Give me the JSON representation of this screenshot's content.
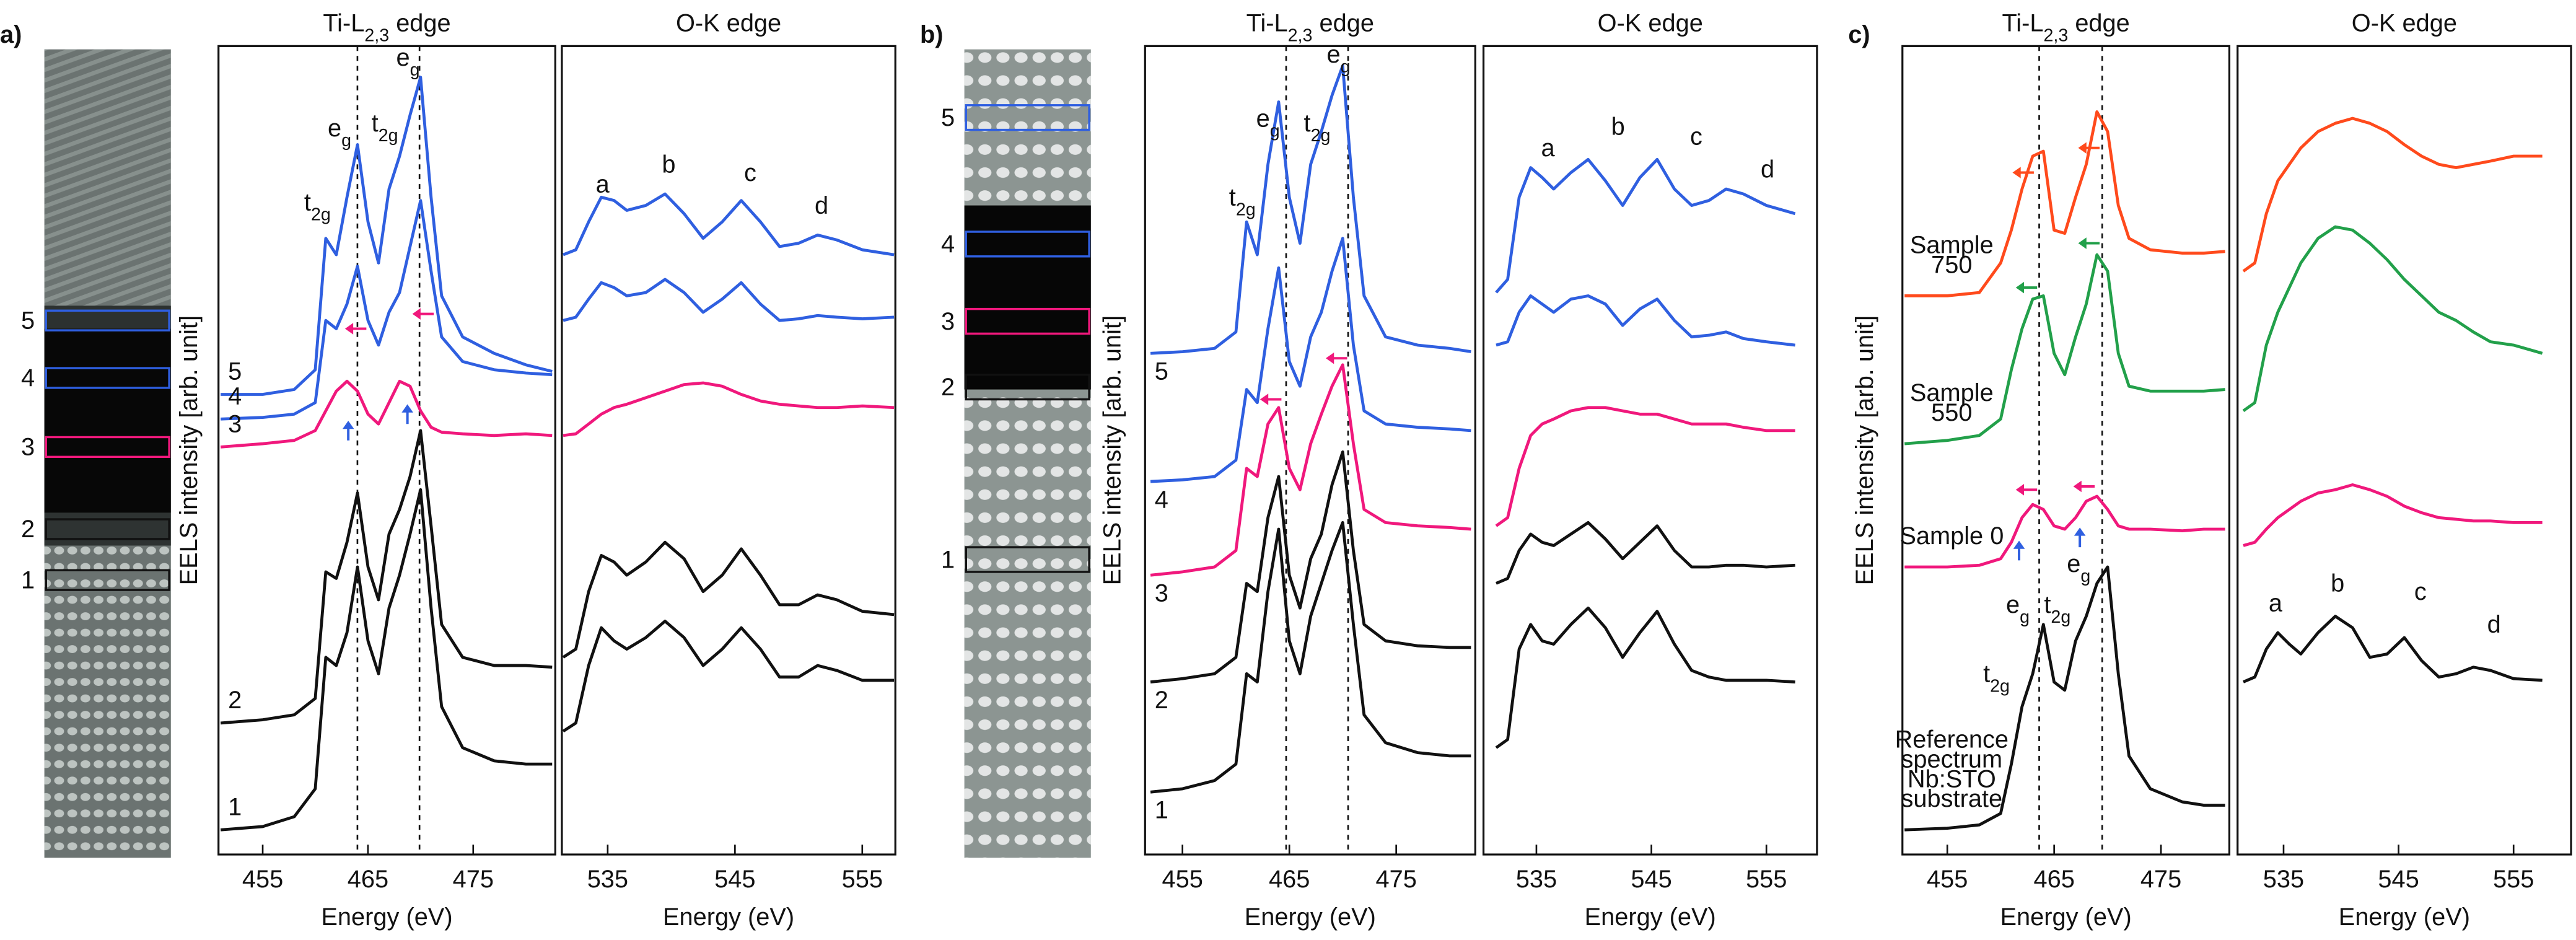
{
  "figure": {
    "panels": [
      {
        "label": "a)",
        "boxes": [
          {
            "label": "5",
            "color": "#2f5fe0"
          },
          {
            "label": "4",
            "color": "#2f5fe0"
          },
          {
            "label": "3",
            "color": "#f0187c"
          },
          {
            "label": "2",
            "color": "#111111"
          },
          {
            "label": "1",
            "color": "#111111"
          }
        ]
      },
      {
        "label": "b)",
        "boxes": [
          {
            "label": "5",
            "color": "#2f5fe0"
          },
          {
            "label": "4",
            "color": "#2f5fe0"
          },
          {
            "label": "3",
            "color": "#f0187c"
          },
          {
            "label": "2",
            "color": "#111111"
          },
          {
            "label": "1",
            "color": "#111111"
          }
        ]
      },
      {
        "label": "c)",
        "boxes": []
      }
    ]
  },
  "chart_data": [
    {
      "type": "line",
      "title": {
        "text": "Ti-L",
        "sub": "2,3",
        "after": " edge"
      },
      "xlabel": "Energy (eV)",
      "ylabel": "EELS intensity [arb. unit]",
      "xlim": [
        450.8,
        482.8
      ],
      "ylim": [
        0,
        492
      ],
      "xticks": [
        455,
        465,
        475
      ],
      "vlines": [
        464.0,
        469.9
      ],
      "x": [
        451,
        455,
        458,
        460,
        461,
        462,
        463,
        464,
        465,
        466,
        467,
        468,
        469,
        470,
        471,
        472,
        474,
        477,
        480,
        482.5
      ],
      "series": [
        {
          "name": "5",
          "color": "#2f5fe0",
          "values": [
            280,
            280,
            283,
            295,
            375,
            365,
            400,
            432,
            385,
            360,
            405,
            425,
            450,
            473,
            400,
            340,
            315,
            305,
            298,
            294
          ]
        },
        {
          "name": "4",
          "color": "#2f5fe0",
          "values": [
            265,
            266,
            268,
            275,
            325,
            320,
            335,
            358,
            325,
            310,
            330,
            342,
            370,
            398,
            355,
            315,
            300,
            295,
            293,
            292
          ]
        },
        {
          "name": "3",
          "color": "#f0187c",
          "values": [
            248,
            250,
            252,
            258,
            270,
            282,
            288,
            282,
            268,
            262,
            275,
            288,
            285,
            270,
            260,
            257,
            256,
            255,
            256,
            255
          ]
        },
        {
          "name": "2",
          "color": "#111111",
          "values": [
            80,
            82,
            85,
            95,
            172,
            168,
            190,
            220,
            175,
            155,
            195,
            210,
            230,
            258,
            200,
            140,
            120,
            115,
            115,
            114
          ]
        },
        {
          "name": "1",
          "color": "#111111",
          "values": [
            15,
            17,
            23,
            40,
            120,
            115,
            135,
            175,
            130,
            110,
            150,
            170,
            195,
            222,
            150,
            90,
            65,
            57,
            55,
            55
          ]
        }
      ],
      "annotations": [
        {
          "text": "t",
          "sub": "2g",
          "x": 460.2,
          "y": 392
        },
        {
          "text": "e",
          "sub": "g",
          "x": 462.3,
          "y": 437
        },
        {
          "text": "t",
          "sub": "2g",
          "x": 466.6,
          "y": 440
        },
        {
          "text": "e",
          "sub": "g",
          "x": 468.8,
          "y": 480
        }
      ]
    },
    {
      "type": "line",
      "title": "O-K edge",
      "xlabel": "Energy (eV)",
      "xlim": [
        531.4,
        557.6
      ],
      "ylim": [
        0,
        492
      ],
      "xticks": [
        535,
        545,
        555
      ],
      "x": [
        531.5,
        532.5,
        533.5,
        534.5,
        535.5,
        536.5,
        538,
        539.5,
        541,
        542.5,
        544,
        545.5,
        547,
        548.5,
        550,
        551.5,
        553,
        555,
        557.5
      ],
      "series": [
        {
          "color": "#2f5fe0",
          "values": [
            365,
            368,
            385,
            400,
            398,
            392,
            395,
            402,
            390,
            375,
            385,
            398,
            385,
            370,
            372,
            377,
            374,
            368,
            365
          ]
        },
        {
          "color": "#2f5fe0",
          "values": [
            325,
            327,
            338,
            348,
            345,
            340,
            342,
            350,
            342,
            330,
            338,
            348,
            335,
            325,
            326,
            328,
            327,
            326,
            327
          ]
        },
        {
          "color": "#f0187c",
          "values": [
            255,
            256,
            262,
            268,
            272,
            274,
            278,
            282,
            286,
            287,
            285,
            280,
            276,
            274,
            273,
            272,
            272,
            273,
            272
          ]
        },
        {
          "color": "#111111",
          "values": [
            120,
            125,
            160,
            182,
            178,
            170,
            178,
            190,
            180,
            160,
            170,
            186,
            170,
            152,
            152,
            158,
            155,
            148,
            146
          ]
        },
        {
          "color": "#111111",
          "values": [
            75,
            80,
            115,
            138,
            130,
            125,
            132,
            142,
            132,
            115,
            125,
            138,
            125,
            108,
            108,
            115,
            112,
            106,
            106
          ]
        }
      ],
      "annotations": [
        {
          "text": "a",
          "x": 534.6,
          "y": 403
        },
        {
          "text": "b",
          "x": 539.8,
          "y": 415
        },
        {
          "text": "c",
          "x": 546.2,
          "y": 410
        },
        {
          "text": "d",
          "x": 551.8,
          "y": 390
        }
      ]
    },
    {
      "type": "line",
      "title": {
        "text": "Ti-L",
        "sub": "2,3",
        "after": " edge"
      },
      "xlabel": "Energy (eV)",
      "ylabel": "EELS intensity [arb. unit]",
      "xlim": [
        451.5,
        482.4
      ],
      "ylim": [
        0,
        492
      ],
      "xticks": [
        455,
        465,
        475
      ],
      "vlines": [
        464.7,
        470.5
      ],
      "x": [
        452,
        455,
        458,
        460,
        461,
        462,
        463,
        464,
        465,
        466,
        467,
        468,
        469,
        470,
        471,
        472,
        474,
        477,
        480,
        482
      ],
      "series": [
        {
          "name": "5",
          "color": "#2f5fe0",
          "values": [
            305,
            306,
            308,
            318,
            385,
            365,
            420,
            458,
            400,
            372,
            420,
            440,
            462,
            480,
            400,
            340,
            315,
            310,
            308,
            306
          ]
        },
        {
          "name": "4",
          "color": "#2f5fe0",
          "values": [
            227,
            228,
            230,
            240,
            283,
            275,
            320,
            357,
            300,
            285,
            315,
            330,
            355,
            375,
            310,
            270,
            262,
            260,
            259,
            258
          ]
        },
        {
          "name": "3",
          "color": "#f0187c",
          "values": [
            170,
            172,
            175,
            185,
            235,
            230,
            262,
            272,
            235,
            222,
            250,
            268,
            285,
            298,
            250,
            210,
            202,
            200,
            199,
            198
          ]
        },
        {
          "name": "2",
          "color": "#111111",
          "values": [
            105,
            107,
            110,
            120,
            165,
            160,
            205,
            230,
            170,
            150,
            180,
            195,
            225,
            245,
            185,
            140,
            130,
            127,
            126,
            126
          ]
        },
        {
          "name": "1",
          "color": "#111111",
          "values": [
            38,
            40,
            45,
            55,
            110,
            105,
            160,
            198,
            130,
            110,
            145,
            165,
            185,
            202,
            140,
            85,
            68,
            62,
            60,
            60
          ]
        }
      ],
      "annotations": [
        {
          "text": "t",
          "sub": "2g",
          "x": 460.6,
          "y": 395
        },
        {
          "text": "e",
          "sub": "g",
          "x": 463.0,
          "y": 443
        },
        {
          "text": "t",
          "sub": "2g",
          "x": 467.6,
          "y": 440
        },
        {
          "text": "e",
          "sub": "g",
          "x": 469.6,
          "y": 482
        }
      ]
    },
    {
      "type": "line",
      "title": "O-K edge",
      "xlabel": "Energy (eV)",
      "xlim": [
        530.4,
        559.4
      ],
      "ylim": [
        0,
        492
      ],
      "xticks": [
        535,
        545,
        555
      ],
      "x": [
        531.5,
        532.5,
        533.5,
        534.5,
        535.5,
        536.5,
        538,
        539.5,
        541,
        542.5,
        544,
        545.5,
        547,
        548.5,
        550,
        551.5,
        553,
        555,
        557.5
      ],
      "series": [
        {
          "color": "#2f5fe0",
          "values": [
            342,
            350,
            400,
            418,
            412,
            405,
            415,
            423,
            410,
            395,
            412,
            423,
            405,
            395,
            398,
            405,
            402,
            395,
            390
          ]
        },
        {
          "color": "#2f5fe0",
          "values": [
            310,
            312,
            330,
            340,
            335,
            330,
            338,
            340,
            335,
            322,
            332,
            338,
            325,
            315,
            316,
            318,
            314,
            312,
            310
          ]
        },
        {
          "color": "#f0187c",
          "values": [
            200,
            205,
            235,
            255,
            262,
            265,
            270,
            272,
            272,
            270,
            268,
            268,
            265,
            262,
            262,
            262,
            260,
            258,
            258
          ]
        },
        {
          "color": "#111111",
          "values": [
            165,
            168,
            185,
            195,
            190,
            188,
            195,
            202,
            192,
            180,
            190,
            200,
            185,
            175,
            175,
            176,
            176,
            175,
            176
          ]
        },
        {
          "color": "#111111",
          "values": [
            65,
            70,
            125,
            140,
            130,
            128,
            140,
            150,
            138,
            120,
            135,
            148,
            128,
            112,
            108,
            106,
            106,
            106,
            105
          ]
        }
      ],
      "annotations": [
        {
          "text": "a",
          "x": 536.0,
          "y": 425
        },
        {
          "text": "b",
          "x": 542.1,
          "y": 438
        },
        {
          "text": "c",
          "x": 548.9,
          "y": 432
        },
        {
          "text": "d",
          "x": 555.1,
          "y": 412
        }
      ]
    },
    {
      "type": "line",
      "title": {
        "text": "Ti-L",
        "sub": "2,3",
        "after": " edge"
      },
      "xlabel": "Energy (eV)",
      "ylabel": "EELS intensity [arb. unit]",
      "xlim": [
        450.8,
        481.4
      ],
      "ylim": [
        0,
        492
      ],
      "xticks": [
        455,
        465,
        475
      ],
      "vlines": [
        463.6,
        469.5
      ],
      "x": [
        451,
        455,
        458,
        460,
        461,
        462,
        463,
        464,
        465,
        466,
        467,
        468,
        469,
        470,
        471,
        472,
        474,
        477,
        479,
        481
      ],
      "series": [
        {
          "label": [
            "Sample",
            "750"
          ],
          "color": "#ff4a1c",
          "values": [
            340,
            340,
            342,
            360,
            380,
            405,
            425,
            428,
            380,
            378,
            400,
            420,
            452,
            440,
            395,
            375,
            368,
            366,
            366,
            367
          ]
        },
        {
          "label": [
            "Sample",
            "550"
          ],
          "color": "#22a04a",
          "values": [
            250,
            252,
            255,
            265,
            295,
            320,
            338,
            340,
            305,
            292,
            315,
            335,
            365,
            355,
            305,
            285,
            282,
            282,
            282,
            283
          ]
        },
        {
          "label": [
            "Sample 0"
          ],
          "color": "#f0187c",
          "values": [
            175,
            175,
            176,
            180,
            190,
            205,
            213,
            210,
            200,
            198,
            205,
            215,
            218,
            210,
            200,
            198,
            198,
            197,
            198,
            198
          ]
        },
        {
          "label": [
            "Reference",
            "spectrum",
            "Nb:STO",
            "substrate"
          ],
          "color": "#111111",
          "values": [
            15,
            16,
            18,
            25,
            55,
            90,
            110,
            140,
            105,
            100,
            130,
            145,
            165,
            175,
            110,
            60,
            40,
            32,
            30,
            30
          ]
        }
      ],
      "annotations": [
        {
          "text": "t",
          "sub": "2g",
          "x": 459.6,
          "y": 105
        },
        {
          "text": "e",
          "sub": "g",
          "x": 461.6,
          "y": 147
        },
        {
          "text": "t",
          "sub": "2g",
          "x": 465.3,
          "y": 147
        },
        {
          "text": "e",
          "sub": "g",
          "x": 467.3,
          "y": 172
        }
      ]
    },
    {
      "type": "line",
      "title": "O-K edge",
      "xlabel": "Energy (eV)",
      "xlim": [
        531.0,
        560.0
      ],
      "ylim": [
        0,
        492
      ],
      "xticks": [
        535,
        545,
        555
      ],
      "x": [
        531.5,
        532.5,
        533.5,
        534.5,
        535.5,
        536.5,
        538,
        539.5,
        541,
        542.5,
        544,
        545.5,
        547,
        548.5,
        550,
        551.5,
        553,
        555,
        557.5
      ],
      "series": [
        {
          "color": "#ff4a1c",
          "values": [
            355,
            360,
            390,
            410,
            420,
            430,
            440,
            445,
            448,
            445,
            440,
            432,
            425,
            420,
            418,
            420,
            422,
            425,
            425
          ]
        },
        {
          "color": "#22a04a",
          "values": [
            270,
            275,
            310,
            330,
            345,
            360,
            375,
            382,
            380,
            372,
            362,
            350,
            340,
            330,
            325,
            318,
            312,
            310,
            305
          ]
        },
        {
          "color": "#f0187c",
          "values": [
            188,
            190,
            198,
            205,
            210,
            215,
            220,
            222,
            225,
            222,
            218,
            212,
            208,
            205,
            204,
            203,
            203,
            202,
            202
          ]
        },
        {
          "color": "#111111",
          "values": [
            105,
            108,
            125,
            135,
            128,
            122,
            135,
            145,
            138,
            120,
            122,
            132,
            118,
            108,
            110,
            114,
            112,
            107,
            106
          ]
        }
      ],
      "annotations": [
        {
          "text": "a",
          "x": 534.3,
          "y": 148
        },
        {
          "text": "b",
          "x": 539.7,
          "y": 160
        },
        {
          "text": "c",
          "x": 546.9,
          "y": 155
        },
        {
          "text": "d",
          "x": 553.3,
          "y": 135
        }
      ]
    }
  ]
}
